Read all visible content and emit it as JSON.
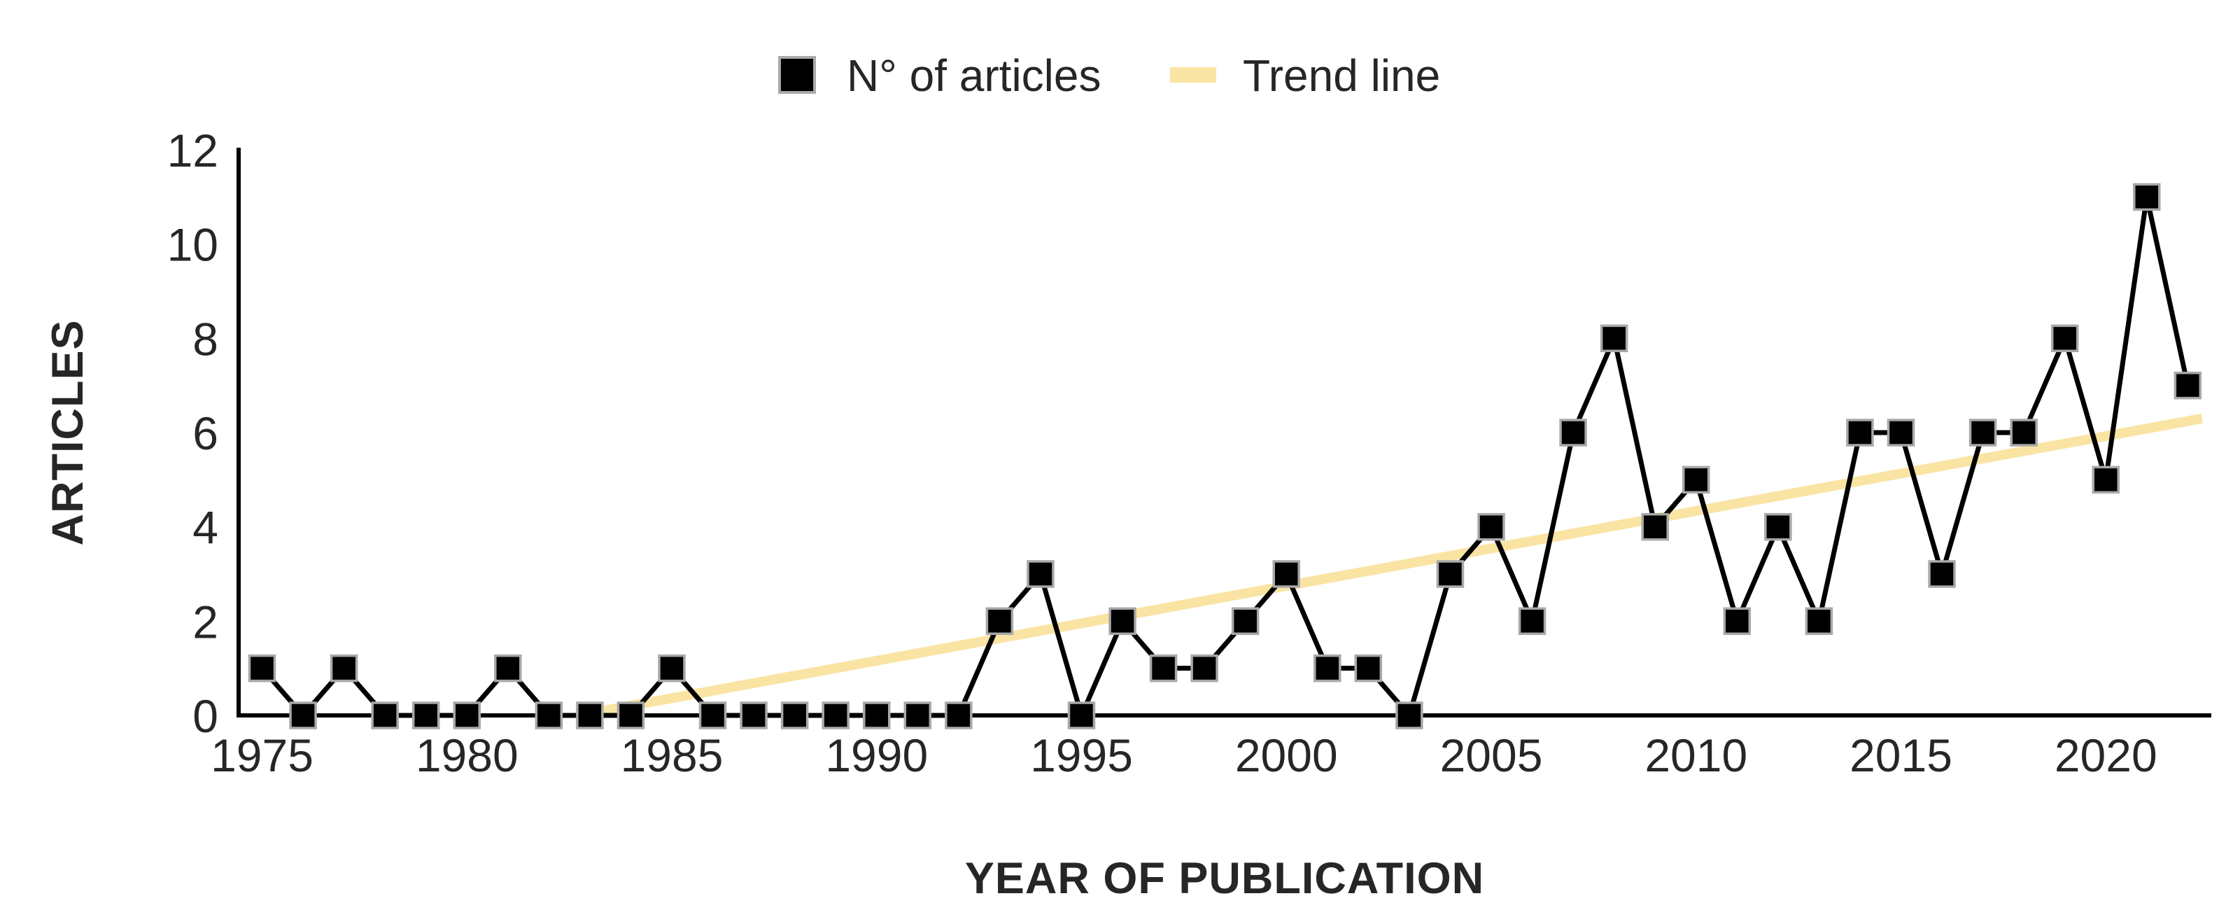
{
  "legend": {
    "articles_swatch": "black-square-marker",
    "trend_swatch": "gold-line-segment"
  },
  "chart_data": {
    "type": "line",
    "title": "",
    "xlabel": "YEAR OF PUBLICATION",
    "ylabel": "ARTICLES",
    "years": [
      1975,
      1976,
      1977,
      1978,
      1979,
      1980,
      1981,
      1982,
      1983,
      1984,
      1985,
      1986,
      1987,
      1988,
      1989,
      1990,
      1991,
      1992,
      1993,
      1994,
      1995,
      1996,
      1997,
      1998,
      1999,
      2000,
      2001,
      2002,
      2003,
      2004,
      2005,
      2006,
      2007,
      2008,
      2009,
      2010,
      2011,
      2012,
      2013,
      2014,
      2015,
      2016,
      2017,
      2018,
      2019,
      2020,
      2021,
      2022
    ],
    "series": [
      {
        "name": "N° of articles",
        "values": [
          1,
          0,
          1,
          0,
          0,
          0,
          1,
          0,
          0,
          0,
          1,
          0,
          0,
          0,
          0,
          0,
          0,
          0,
          2,
          3,
          0,
          2,
          1,
          1,
          2,
          3,
          1,
          1,
          0,
          3,
          4,
          2,
          6,
          8,
          4,
          5,
          2,
          4,
          2,
          6,
          6,
          3,
          6,
          6,
          8,
          5,
          11,
          7
        ]
      }
    ],
    "trend": {
      "name": "Trend line",
      "start_year": 1982.7,
      "start_value": 0,
      "end_year": 2022.35,
      "end_value": 6.3
    },
    "x_ticks": [
      1975,
      1980,
      1985,
      1990,
      1995,
      2000,
      2005,
      2010,
      2015,
      2020
    ],
    "y_ticks": [
      0,
      2,
      4,
      6,
      8,
      10,
      12
    ],
    "ylim": [
      0,
      12
    ],
    "grid": "off",
    "legend_position": "top-center",
    "colors": {
      "series_line": "#000000",
      "marker_fill": "#000000",
      "marker_border": "#a8a8a8",
      "trend_line": "#fae4a4",
      "axis": "#000000",
      "text": "#262626"
    }
  }
}
